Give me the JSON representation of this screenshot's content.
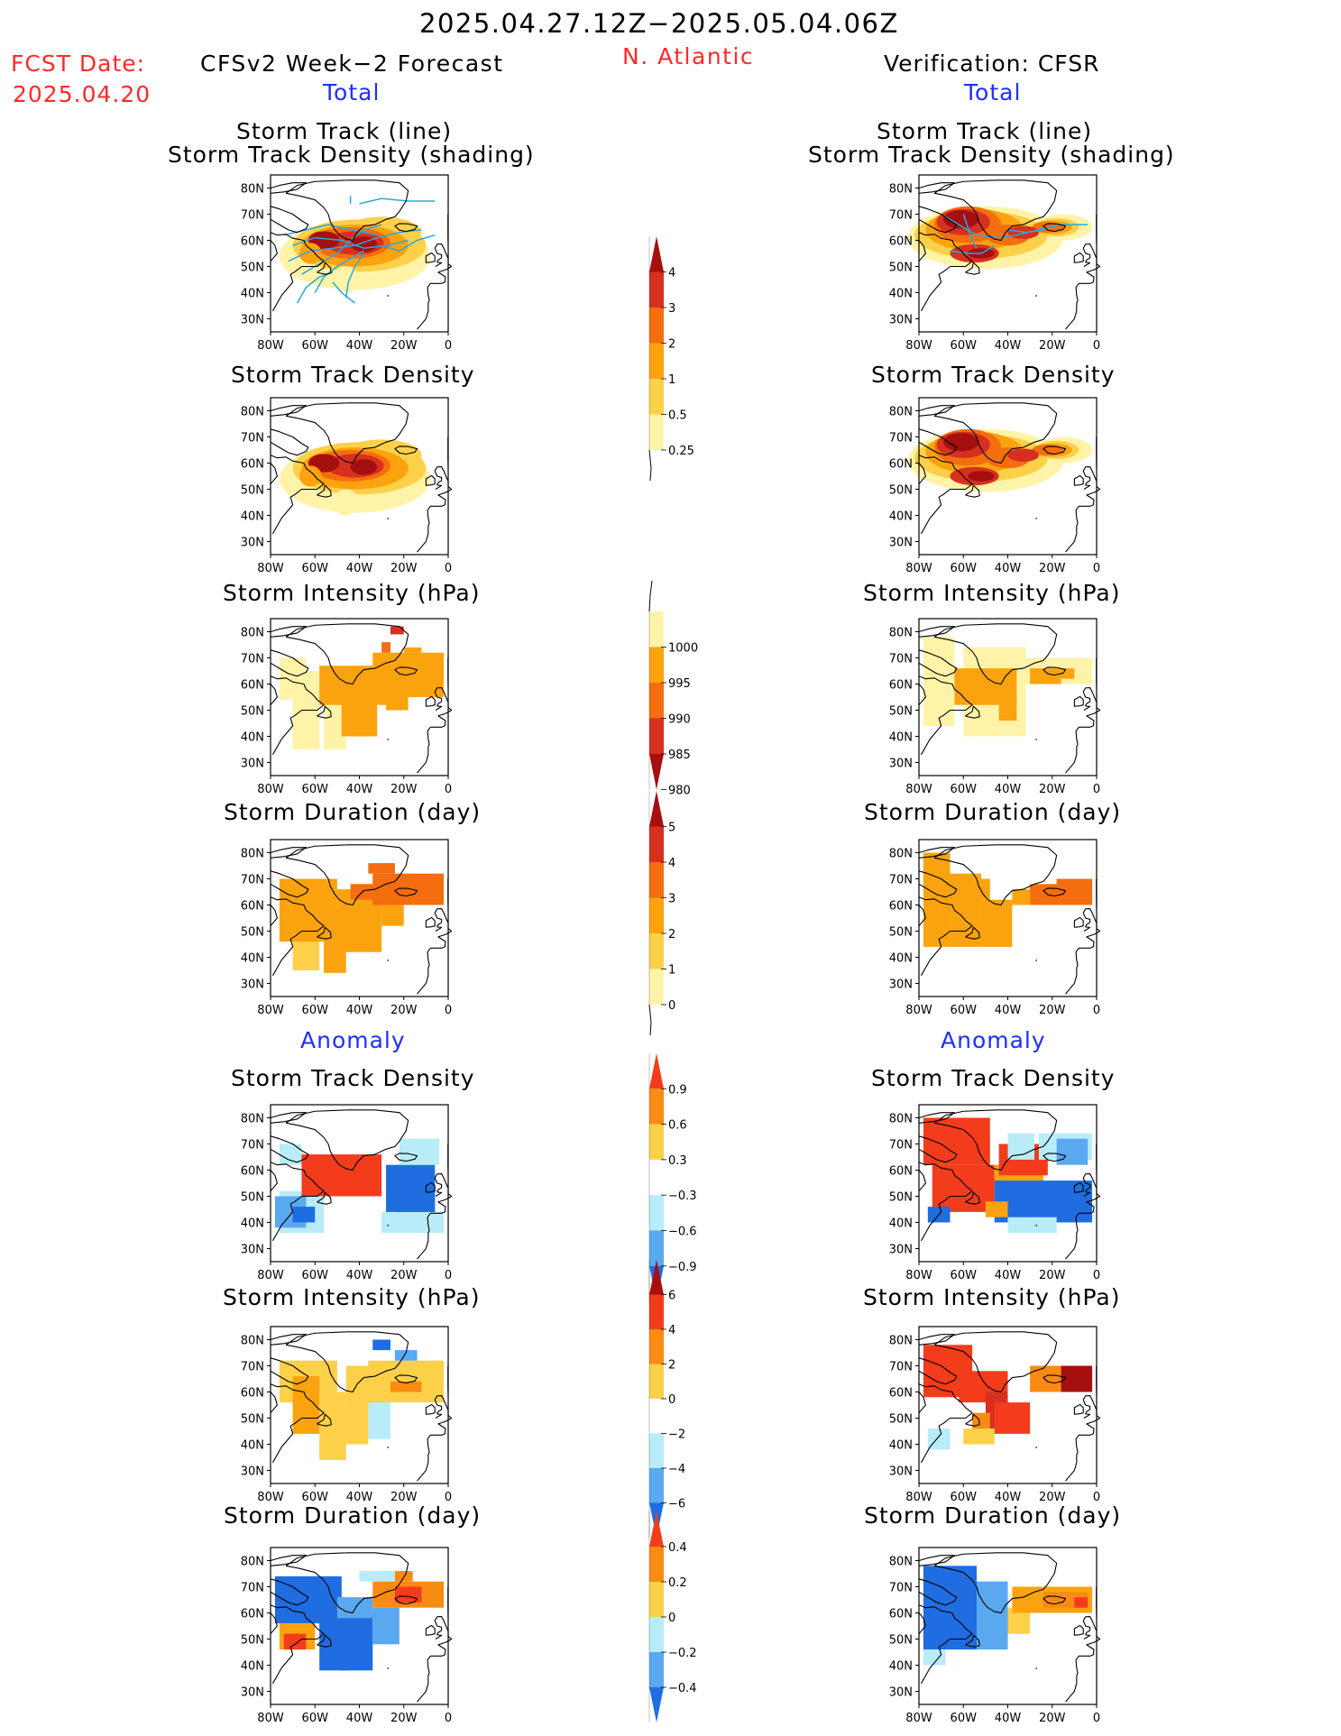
{
  "header": {
    "period": "2025.04.27.12Z−2025.05.04.06Z",
    "fcst_label": "FCST Date:",
    "fcst_date": "2025.04.20",
    "model": "CFSv2 Week−2 Forecast",
    "region": "N. Atlantic",
    "verification": "Verification: CFSR"
  },
  "sections": {
    "total": "Total",
    "anomaly": "Anomaly"
  },
  "panel_titles": {
    "storm_track_line": "Storm Track (line)",
    "storm_track_density_shading": "Storm Track Density (shading)",
    "storm_track_density": "Storm Track Density",
    "storm_intensity": "Storm Intensity (hPa)",
    "storm_duration": "Storm Duration (day)"
  },
  "map_axes": {
    "lat_labels": [
      "80N",
      "70N",
      "60N",
      "50N",
      "40N",
      "30N"
    ],
    "lon_labels": [
      "80W",
      "60W",
      "40W",
      "20W",
      "0"
    ]
  },
  "colorbars": [
    {
      "name": "track-density-total",
      "labels": [
        "4",
        "3",
        "2",
        "1",
        "0.5",
        "0.25"
      ],
      "colors": [
        "#a50f0f",
        "#d7301f",
        "#f46d0e",
        "#fba30f",
        "#fdd049",
        "#fff3a8"
      ]
    },
    {
      "name": "intensity-total",
      "labels": [
        "1000",
        "995",
        "990",
        "985",
        "980"
      ],
      "colors": [
        "#fff3a8",
        "#fba30f",
        "#f46d0e",
        "#d7301f",
        "#a50f0f"
      ]
    },
    {
      "name": "duration-total",
      "labels": [
        "5",
        "4",
        "3",
        "2",
        "1",
        "0"
      ],
      "colors": [
        "#a50f0f",
        "#d7301f",
        "#f46d0e",
        "#fba30f",
        "#fdd049",
        "#fff3a8"
      ]
    },
    {
      "name": "track-density-anomaly",
      "labels": [
        "0.9",
        "0.6",
        "0.3",
        "−0.3",
        "−0.6",
        "−0.9"
      ],
      "colors": [
        "#f23c1c",
        "#f98b12",
        "#fdd049",
        "#ffffff",
        "#b8ecf8",
        "#5aa8f0",
        "#1f6de0"
      ]
    },
    {
      "name": "intensity-anomaly",
      "labels": [
        "6",
        "4",
        "2",
        "0",
        "−2",
        "−4",
        "−6"
      ],
      "colors": [
        "#a50f0f",
        "#f23c1c",
        "#f98b12",
        "#fdd049",
        "#ffffff",
        "#b8ecf8",
        "#5aa8f0",
        "#1f6de0"
      ]
    },
    {
      "name": "duration-anomaly",
      "labels": [
        "0.4",
        "0.2",
        "0",
        "−0.2",
        "−0.4"
      ],
      "colors": [
        "#f23c1c",
        "#f98b12",
        "#fdd049",
        "#b8ecf8",
        "#5aa8f0",
        "#1f6de0"
      ]
    }
  ],
  "colors": {
    "land_line": "#000000",
    "track_line": "#2aa8e0",
    "title_red": "#ff2a2a",
    "section_blue": "#1f2fff"
  }
}
